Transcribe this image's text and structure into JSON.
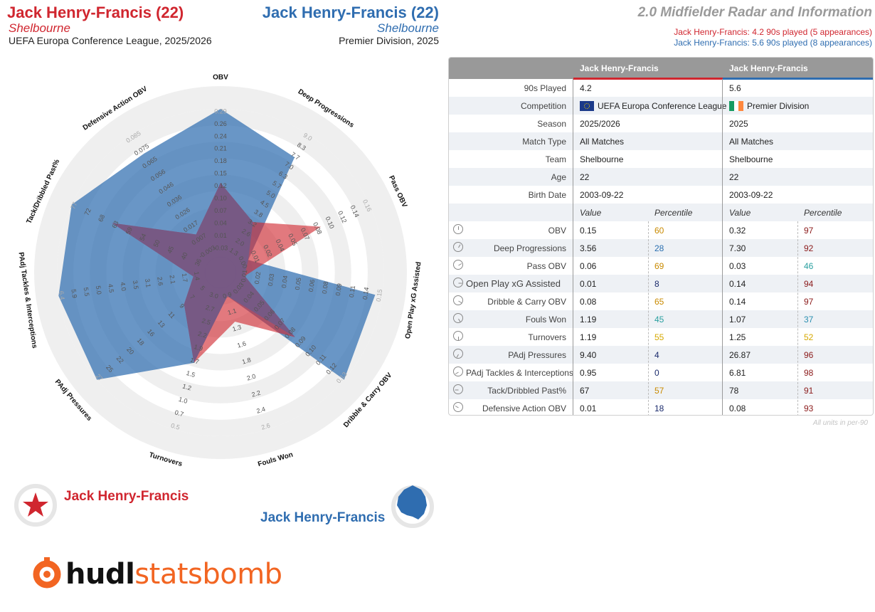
{
  "header": {
    "p1_name": "Jack Henry-Francis (22)",
    "p1_club": "Shelbourne",
    "p1_comp": "UEFA Europa Conference League, 2025/2026",
    "p2_name": "Jack Henry-Francis (22)",
    "p2_club": "Shelbourne",
    "p2_comp": "Premier Division, 2025",
    "title": "2.0 Midfielder Radar and Information",
    "sub1": "Jack Henry-Francis: 4.2 90s played (5 appearances)",
    "sub2": "Jack Henry-Francis: 5.6 90s played (8 appearances)"
  },
  "colors": {
    "p1": "#d0262f",
    "p2": "#2f6db0",
    "orange": "#f26522"
  },
  "legend": {
    "p1": "Jack Henry-Francis",
    "p2": "Jack Henry-Francis"
  },
  "logo": {
    "part1": "hudl",
    "part2": "statsbomb"
  },
  "chart_data": {
    "type": "radar",
    "axes": [
      {
        "label": "OBV",
        "ticks": [
          "-0.03",
          "0.01",
          "0.04",
          "0.07",
          "0.10",
          "0.12",
          "0.15",
          "0.18",
          "0.21",
          "0.24",
          "0.26",
          "0.29"
        ]
      },
      {
        "label": "Deep Progressions",
        "ticks": [
          "1.3",
          "2.0",
          "2.6",
          "3.2",
          "3.8",
          "4.5",
          "5.0",
          "5.7",
          "6.3",
          "7.0",
          "7.7",
          "8.3",
          "9.0"
        ]
      },
      {
        "label": "Pass OBV",
        "ticks": [
          "0.00",
          "0.01",
          "0.02",
          "0.04",
          "0.05",
          "0.07",
          "0.08",
          "0.10",
          "0.12",
          "0.14",
          "0.16"
        ]
      },
      {
        "label": "Open Play xG Assisted",
        "ticks": [
          "0.01",
          "0.02",
          "0.03",
          "0.04",
          "0.05",
          "0.06",
          "0.08",
          "0.09",
          "0.11",
          "0.14",
          "0.15"
        ]
      },
      {
        "label": "Dribble & Carry OBV",
        "ticks": [
          "0.03",
          "0.04",
          "0.05",
          "0.06",
          "0.07",
          "0.08",
          "0.09",
          "0.10",
          "0.11",
          "0.12",
          "0.13"
        ]
      },
      {
        "label": "Fouls Won",
        "ticks": [
          "0.9",
          "1.1",
          "1.3",
          "1.6",
          "1.8",
          "2.0",
          "2.2",
          "2.4",
          "2.6"
        ]
      },
      {
        "label": "Turnovers",
        "ticks": [
          "3.0",
          "2.7",
          "2.5",
          "2.2",
          "1.9",
          "1.7",
          "1.5",
          "1.2",
          "1.0",
          "0.7",
          "0.5"
        ]
      },
      {
        "label": "PAdj Pressures",
        "ticks": [
          "5",
          "7",
          "9",
          "11",
          "13",
          "16",
          "18",
          "20",
          "22",
          "25",
          "27"
        ]
      },
      {
        "label": "PAdj Tackles & Interceptions",
        "ticks": [
          "1.4",
          "1.7",
          "2.1",
          "2.6",
          "3.1",
          "3.5",
          "4.0",
          "4.5",
          "5.0",
          "5.5",
          "5.9",
          "6.4"
        ]
      },
      {
        "label": "Tack/Dribbled Past%",
        "ticks": [
          "36",
          "40",
          "45",
          "50",
          "54",
          "59",
          "63",
          "68",
          "72",
          "77"
        ]
      },
      {
        "label": "Defensive Action OBV",
        "ticks": [
          "-0.003",
          "0.007",
          "0.017",
          "0.026",
          "0.036",
          "0.046",
          "0.056",
          "0.065",
          "0.075",
          "0.085"
        ]
      }
    ],
    "series": [
      {
        "name": "Jack Henry-Francis",
        "competition": "UEFA Europa Conference League",
        "values": [
          0.15,
          3.56,
          0.06,
          0.01,
          0.08,
          1.19,
          1.19,
          9.4,
          0.95,
          67,
          0.01
        ]
      },
      {
        "name": "Jack Henry-Francis",
        "competition": "Premier Division",
        "values": [
          0.32,
          7.3,
          0.03,
          0.14,
          0.14,
          1.07,
          1.25,
          26.87,
          6.81,
          78,
          0.08
        ]
      }
    ],
    "radial_fraction": [
      [
        0.5,
        0.3,
        0.64,
        0.06,
        0.56,
        0.24,
        0.53,
        0.22,
        0.08,
        0.7,
        0.2
      ],
      [
        1.0,
        0.82,
        0.1,
        0.95,
        1.0,
        0.06,
        0.53,
        1.0,
        1.0,
        1.0,
        0.85
      ]
    ]
  },
  "table": {
    "headers": [
      "Jack Henry-Francis",
      "Jack Henry-Francis"
    ],
    "info": [
      {
        "label": "90s Played",
        "v1": "4.2",
        "v2": "5.6"
      },
      {
        "label": "Competition",
        "v1": "UEFA Europa Conference League",
        "v2": "Premier Division"
      },
      {
        "label": "Season",
        "v1": "2025/2026",
        "v2": "2025"
      },
      {
        "label": "Match Type",
        "v1": "All Matches",
        "v2": "All Matches"
      },
      {
        "label": "Team",
        "v1": "Shelbourne",
        "v2": "Shelbourne"
      },
      {
        "label": "Age",
        "v1": "22",
        "v2": "22"
      },
      {
        "label": "Birth Date",
        "v1": "2003-09-22",
        "v2": "2003-09-22"
      }
    ],
    "subheader": {
      "value": "Value",
      "percentile": "Percentile"
    },
    "metrics": [
      {
        "label": "OBV",
        "v1": "0.15",
        "p1": "60",
        "c1": "#c98a00",
        "v2": "0.32",
        "p2": "97",
        "c2": "#8b1a1a"
      },
      {
        "label": "Deep Progressions",
        "v1": "3.56",
        "p1": "28",
        "c1": "#2a6fb0",
        "v2": "7.30",
        "p2": "92",
        "c2": "#8b1a1a"
      },
      {
        "label": "Pass OBV",
        "v1": "0.06",
        "p1": "69",
        "c1": "#c98a00",
        "v2": "0.03",
        "p2": "46",
        "c2": "#2aa0a0"
      },
      {
        "label": "Open Play xG Assisted",
        "v1": "0.01",
        "p1": "8",
        "c1": "#1a2a6c",
        "v2": "0.14",
        "p2": "94",
        "c2": "#8b1a1a"
      },
      {
        "label": "Dribble & Carry OBV",
        "v1": "0.08",
        "p1": "65",
        "c1": "#c98a00",
        "v2": "0.14",
        "p2": "97",
        "c2": "#8b1a1a"
      },
      {
        "label": "Fouls Won",
        "v1": "1.19",
        "p1": "45",
        "c1": "#2aa0a0",
        "v2": "1.07",
        "p2": "37",
        "c2": "#2a8fb0"
      },
      {
        "label": "Turnovers",
        "v1": "1.19",
        "p1": "55",
        "c1": "#d6a800",
        "v2": "1.25",
        "p2": "52",
        "c2": "#d6a800"
      },
      {
        "label": "PAdj Pressures",
        "v1": "9.40",
        "p1": "4",
        "c1": "#1a2a6c",
        "v2": "26.87",
        "p2": "96",
        "c2": "#8b1a1a"
      },
      {
        "label": "PAdj Tackles & Interceptions",
        "v1": "0.95",
        "p1": "0",
        "c1": "#1a2a6c",
        "v2": "6.81",
        "p2": "98",
        "c2": "#8b1a1a"
      },
      {
        "label": "Tack/Dribbled Past%",
        "v1": "67",
        "p1": "57",
        "c1": "#c98a00",
        "v2": "78",
        "p2": "91",
        "c2": "#8b1a1a"
      },
      {
        "label": "Defensive Action OBV",
        "v1": "0.01",
        "p1": "18",
        "c1": "#1a2a6c",
        "v2": "0.08",
        "p2": "93",
        "c2": "#8b1a1a"
      }
    ],
    "units_note": "All units in per-90"
  }
}
